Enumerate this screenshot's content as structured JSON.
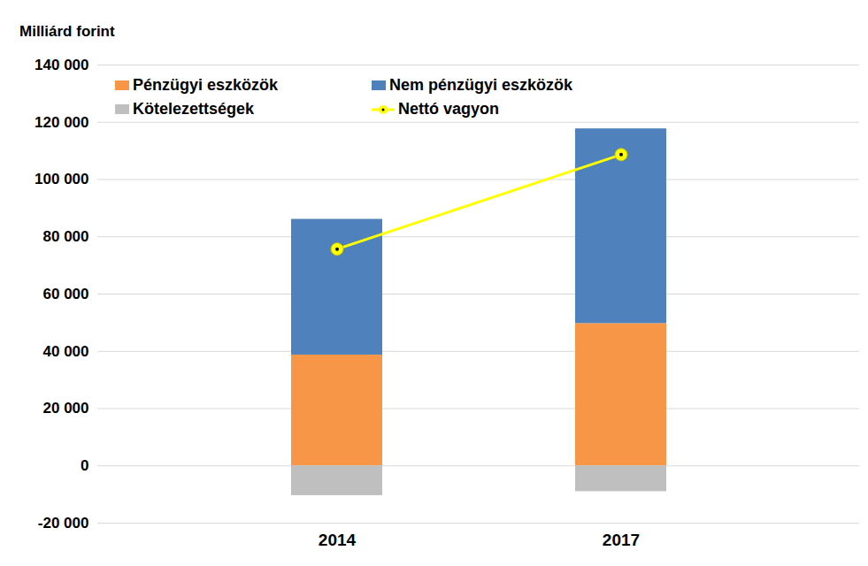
{
  "chart_data": {
    "type": "bar",
    "stacked": true,
    "ylabel": "Milliárd forint",
    "categories": [
      "2014",
      "2017"
    ],
    "series": [
      {
        "name": "Pénzügyi eszközök",
        "color": "#F79646",
        "values": [
          38700,
          49700
        ]
      },
      {
        "name": "Nem pénzügyi eszközök",
        "color": "#4F81BD",
        "values": [
          47400,
          68000
        ]
      },
      {
        "name": "Kötelezettségek",
        "color": "#BFBFBF",
        "values": [
          -10400,
          -9000
        ]
      },
      {
        "name": "Nettó vagyon",
        "type": "line",
        "color": "#FFFF00",
        "marker": "circle",
        "values": [
          75700,
          108700
        ]
      }
    ],
    "ylim": [
      -20000,
      140000
    ],
    "yticks": [
      {
        "value": -20000,
        "label": "-20 000"
      },
      0,
      {
        "value": 20000,
        "label": "20 000"
      },
      {
        "value": 40000,
        "label": "40 000"
      },
      {
        "value": 60000,
        "label": "60 000"
      },
      {
        "value": 80000,
        "label": "80 000"
      },
      {
        "value": 100000,
        "label": "100 000"
      },
      {
        "value": 120000,
        "label": "120 000"
      },
      {
        "value": 140000,
        "label": "140 000"
      }
    ],
    "grid": true,
    "legend": "top-left"
  }
}
